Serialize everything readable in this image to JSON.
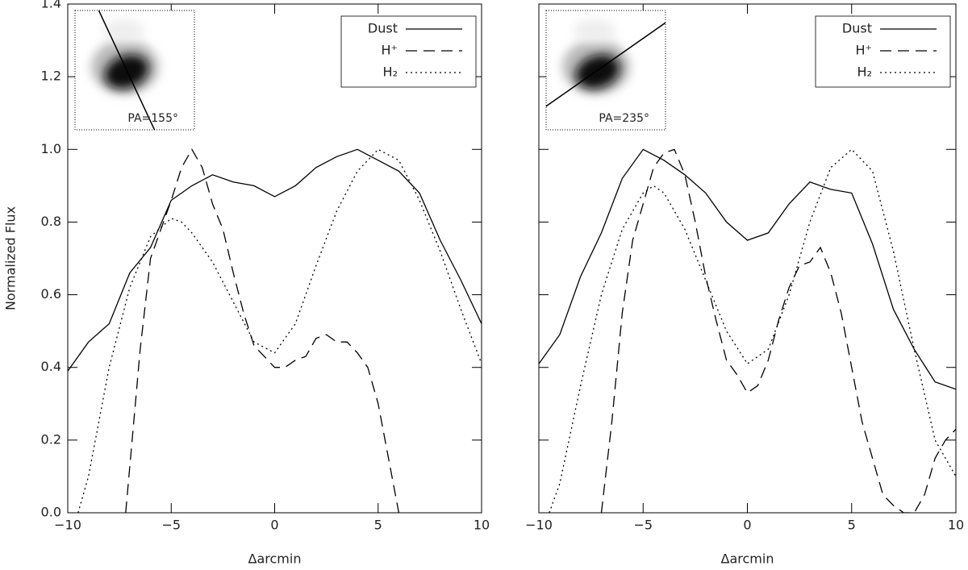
{
  "chart_data": [
    {
      "type": "line",
      "xlabel": "Δarcmin",
      "ylabel": "Normalized Flux",
      "annotation": "PA=155°",
      "inset_angle": 155,
      "xlim": [
        -10,
        10
      ],
      "ylim": [
        0,
        1.4
      ],
      "legend": "upper right",
      "show_ytick_labels": true,
      "xticks": [
        {
          "value": -10,
          "label": "−10"
        },
        {
          "value": -5,
          "label": "−5"
        },
        0,
        5,
        10
      ],
      "yticks": [
        {
          "value": 0,
          "label": "0.0"
        },
        {
          "value": 0.2,
          "label": "0.2"
        },
        {
          "value": 0.4,
          "label": "0.4"
        },
        {
          "value": 0.6,
          "label": "0.6"
        },
        {
          "value": 0.8,
          "label": "0.8"
        },
        {
          "value": 1,
          "label": "1.0"
        },
        {
          "value": 1.2,
          "label": "1.2"
        },
        {
          "value": 1.4,
          "label": "1.4"
        }
      ],
      "series": [
        {
          "name": "Dust",
          "color": "#000000",
          "dash": "solid",
          "x": [
            -10,
            -9,
            -8,
            -7,
            -6,
            -5,
            -4,
            -3,
            -2,
            -1,
            0,
            1,
            2,
            3,
            4,
            5,
            6,
            7,
            8,
            9,
            10
          ],
          "values": [
            0.39,
            0.47,
            0.52,
            0.66,
            0.73,
            0.86,
            0.9,
            0.93,
            0.91,
            0.9,
            0.87,
            0.9,
            0.95,
            0.98,
            1.0,
            0.97,
            0.94,
            0.88,
            0.75,
            0.64,
            0.52
          ]
        },
        {
          "name": "H⁺",
          "color": "#000000",
          "dash": "dashed",
          "x": [
            -7.2,
            -6.5,
            -6,
            -5,
            -4.5,
            -4,
            -3.5,
            -3,
            -2.5,
            -2,
            -1.5,
            -1,
            -0.5,
            0,
            0.5,
            1,
            1.5,
            2,
            2.5,
            3,
            3.5,
            4,
            4.5,
            5,
            5.5,
            6
          ],
          "values": [
            0,
            0.45,
            0.7,
            0.86,
            0.95,
            1.0,
            0.95,
            0.85,
            0.78,
            0.66,
            0.55,
            0.46,
            0.43,
            0.4,
            0.4,
            0.42,
            0.43,
            0.48,
            0.49,
            0.47,
            0.47,
            0.44,
            0.4,
            0.3,
            0.15,
            0
          ]
        },
        {
          "name": "H₂",
          "color": "#000000",
          "dash": "dotted",
          "x": [
            -9.5,
            -9,
            -8,
            -7,
            -6,
            -5,
            -4.5,
            -4,
            -3,
            -2,
            -1,
            0,
            1,
            2,
            3,
            4,
            5,
            6,
            7,
            8,
            9,
            10
          ],
          "values": [
            0,
            0.1,
            0.4,
            0.62,
            0.76,
            0.81,
            0.8,
            0.77,
            0.69,
            0.58,
            0.47,
            0.44,
            0.52,
            0.68,
            0.83,
            0.94,
            1.0,
            0.97,
            0.86,
            0.72,
            0.56,
            0.41
          ]
        }
      ]
    },
    {
      "type": "line",
      "xlabel": "Δarcmin",
      "annotation": "PA=235°",
      "inset_angle": 235,
      "xlim": [
        -10,
        10
      ],
      "ylim": [
        0,
        1.4
      ],
      "legend": "upper right",
      "show_ytick_labels": false,
      "xticks": [
        {
          "value": -10,
          "label": "−10"
        },
        {
          "value": -5,
          "label": "−5"
        },
        0,
        5,
        10
      ],
      "yticks": [
        0,
        0.2,
        0.4,
        0.6,
        0.8,
        1,
        1.2,
        1.4
      ],
      "series": [
        {
          "name": "Dust",
          "color": "#000000",
          "dash": "solid",
          "x": [
            -10,
            -9,
            -8,
            -7,
            -6,
            -5,
            -4,
            -3,
            -2,
            -1,
            0,
            1,
            2,
            3,
            4,
            5,
            6,
            7,
            8,
            9,
            10
          ],
          "values": [
            0.41,
            0.49,
            0.65,
            0.77,
            0.92,
            1.0,
            0.97,
            0.93,
            0.88,
            0.8,
            0.75,
            0.77,
            0.85,
            0.91,
            0.89,
            0.88,
            0.74,
            0.56,
            0.45,
            0.36,
            0.34
          ]
        },
        {
          "name": "H⁺",
          "color": "#000000",
          "dash": "dashed",
          "x": [
            -7,
            -6.5,
            -6,
            -5.5,
            -5,
            -4.5,
            -4,
            -3.5,
            -3,
            -2.5,
            -2,
            -1.5,
            -1,
            -0.5,
            0,
            0.5,
            1,
            1.5,
            2,
            2.5,
            3,
            3.5,
            4,
            4.5,
            5,
            5.5,
            6,
            6.5,
            7,
            7.5,
            8,
            8.5,
            9,
            9.5,
            10
          ],
          "values": [
            0,
            0.25,
            0.55,
            0.75,
            0.85,
            0.95,
            0.99,
            1.0,
            0.93,
            0.8,
            0.65,
            0.53,
            0.42,
            0.38,
            0.33,
            0.35,
            0.42,
            0.53,
            0.62,
            0.68,
            0.69,
            0.73,
            0.66,
            0.55,
            0.4,
            0.25,
            0.15,
            0.05,
            0.02,
            0,
            0,
            0.05,
            0.15,
            0.2,
            0.23
          ]
        },
        {
          "name": "H₂",
          "color": "#000000",
          "dash": "dotted",
          "x": [
            -9.5,
            -9,
            -8,
            -7,
            -6,
            -5,
            -4.5,
            -4,
            -3,
            -2,
            -1,
            0,
            1,
            2,
            3,
            4,
            5,
            6,
            7,
            8,
            9,
            10
          ],
          "values": [
            0,
            0.08,
            0.35,
            0.6,
            0.78,
            0.88,
            0.9,
            0.88,
            0.78,
            0.64,
            0.5,
            0.41,
            0.45,
            0.6,
            0.8,
            0.95,
            1.0,
            0.94,
            0.72,
            0.45,
            0.2,
            0.1
          ]
        }
      ]
    }
  ]
}
